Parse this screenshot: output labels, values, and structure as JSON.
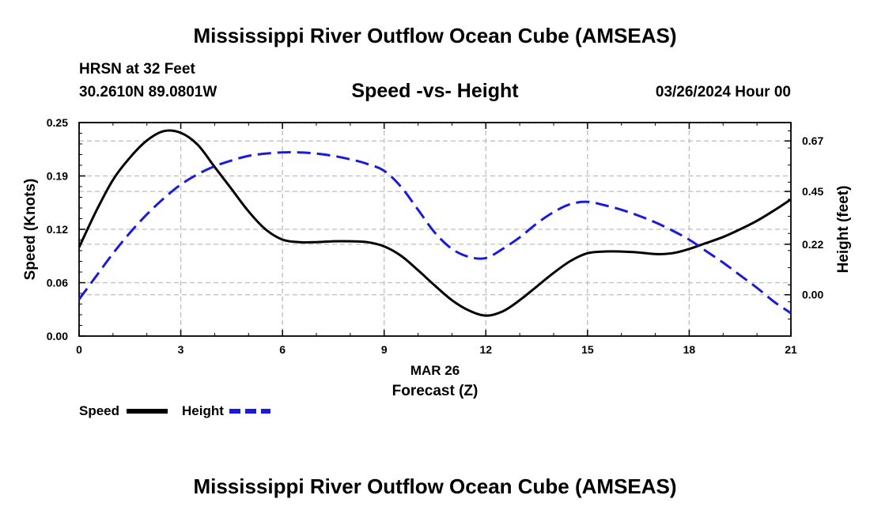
{
  "header": {
    "title": "Mississippi River Outflow Ocean Cube (AMSEAS)",
    "station": "HRSN at 32 Feet",
    "coords": "30.2610N  89.0801W",
    "subtitle": "Speed -vs- Height",
    "datetime": "03/26/2024 Hour 00",
    "bottom_title": "Mississippi River Outflow Ocean Cube (AMSEAS)"
  },
  "chart_data": {
    "type": "line",
    "title": "Speed -vs- Height",
    "xlabel": "Forecast (Z)",
    "xdate_label": "MAR 26",
    "ylabel_left": "Speed (Knots)",
    "ylabel_right": "Height (feet)",
    "x_ticks": [
      "0",
      "3",
      "6",
      "9",
      "12",
      "15",
      "18",
      "21"
    ],
    "x_range": [
      0,
      21
    ],
    "y_left_ticks": [
      "0.00",
      "0.06",
      "0.12",
      "0.19",
      "0.25"
    ],
    "y_left_range": [
      0,
      0.25
    ],
    "y_right_ticks": [
      "0.00",
      "0.22",
      "0.45",
      "0.67"
    ],
    "y_right_range": [
      -0.18,
      0.75
    ],
    "grid": true,
    "series": [
      {
        "name": "Speed",
        "axis": "left",
        "color": "#000000",
        "style": "solid",
        "x": [
          0,
          0.5,
          1,
          1.5,
          2,
          2.5,
          3,
          3.5,
          4,
          4.5,
          5,
          5.5,
          6,
          6.5,
          7,
          7.5,
          8,
          8.5,
          9,
          9.5,
          10,
          10.5,
          11,
          11.5,
          12,
          12.5,
          13,
          13.5,
          14,
          14.5,
          15,
          15.5,
          16,
          16.5,
          17,
          17.5,
          18,
          18.5,
          19,
          19.5,
          20,
          20.5,
          21
        ],
        "values": [
          0.104,
          0.146,
          0.183,
          0.209,
          0.229,
          0.24,
          0.238,
          0.224,
          0.198,
          0.172,
          0.146,
          0.125,
          0.113,
          0.11,
          0.11,
          0.111,
          0.111,
          0.11,
          0.105,
          0.094,
          0.077,
          0.059,
          0.042,
          0.03,
          0.024,
          0.029,
          0.042,
          0.058,
          0.074,
          0.088,
          0.097,
          0.099,
          0.099,
          0.098,
          0.096,
          0.097,
          0.102,
          0.109,
          0.116,
          0.125,
          0.135,
          0.147,
          0.16
        ]
      },
      {
        "name": "Height",
        "axis": "right",
        "color": "#1a1adc",
        "style": "dashed",
        "x": [
          0,
          0.5,
          1,
          1.5,
          2,
          2.5,
          3,
          3.5,
          4,
          4.5,
          5,
          5.5,
          6,
          6.5,
          7,
          7.5,
          8,
          8.5,
          9,
          9.5,
          10,
          10.5,
          11,
          11.5,
          12,
          12.5,
          13,
          13.5,
          14,
          14.5,
          15,
          15.5,
          16,
          16.5,
          17,
          17.5,
          18,
          18.5,
          19,
          19.5,
          20,
          20.5,
          21
        ],
        "values": [
          -0.02,
          0.08,
          0.18,
          0.27,
          0.35,
          0.42,
          0.48,
          0.525,
          0.56,
          0.585,
          0.605,
          0.615,
          0.62,
          0.62,
          0.615,
          0.605,
          0.59,
          0.57,
          0.54,
          0.47,
          0.37,
          0.27,
          0.2,
          0.165,
          0.16,
          0.2,
          0.25,
          0.31,
          0.36,
          0.395,
          0.405,
          0.39,
          0.37,
          0.345,
          0.315,
          0.28,
          0.24,
          0.19,
          0.14,
          0.085,
          0.03,
          -0.03,
          -0.08
        ]
      }
    ],
    "legend": [
      {
        "label": "Speed",
        "color": "#000000",
        "style": "solid"
      },
      {
        "label": "Height",
        "color": "#1a1adc",
        "style": "dashed"
      }
    ]
  }
}
